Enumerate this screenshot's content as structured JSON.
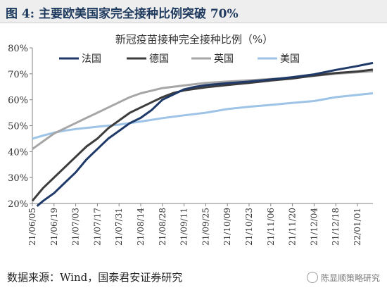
{
  "header": {
    "figure_title": "图 4:   主要欧美国家完全接种比例突破 70%"
  },
  "footer": {
    "source": "数据来源：Wind，国泰君安证券研究",
    "watermark": "陈显顺策略研究"
  },
  "colors": {
    "france": "#1f3a68",
    "germany": "#3c3c3c",
    "uk": "#a6a6a6",
    "usa": "#9dc3e6",
    "header_bg": "#eeeeee",
    "title": "#1f3a5f"
  },
  "chart_data": {
    "type": "line",
    "title": "新冠疫苗接种完全接种比例（%）",
    "xlabel": "",
    "ylabel": "",
    "ylim": [
      20,
      80
    ],
    "y_ticks": [
      20,
      30,
      40,
      50,
      60,
      70,
      80
    ],
    "y_tick_labels": [
      "20%",
      "30%",
      "40%",
      "50%",
      "60%",
      "70%",
      "80%"
    ],
    "x_tick_labels": [
      "21/06/05",
      "21/06/19",
      "21/07/03",
      "21/07/17",
      "21/07/31",
      "21/08/14",
      "21/08/28",
      "21/09/11",
      "21/09/25",
      "21/10/09",
      "21/10/23",
      "21/11/06",
      "21/11/20",
      "21/12/04",
      "21/12/18",
      "22/01/01"
    ],
    "x_range": [
      "2021-06-05",
      "2022-01-11"
    ],
    "grid": false,
    "legend": "top-left",
    "series": [
      {
        "name": "法国",
        "color": "#1f3a68",
        "points": [
          [
            "2021-06-08",
            19
          ],
          [
            "2021-06-12",
            21
          ],
          [
            "2021-06-19",
            24
          ],
          [
            "2021-06-26",
            28
          ],
          [
            "2021-07-03",
            32
          ],
          [
            "2021-07-10",
            37
          ],
          [
            "2021-07-17",
            41
          ],
          [
            "2021-07-24",
            45
          ],
          [
            "2021-07-31",
            48
          ],
          [
            "2021-08-07",
            51
          ],
          [
            "2021-08-14",
            53
          ],
          [
            "2021-08-21",
            56
          ],
          [
            "2021-08-28",
            60
          ],
          [
            "2021-09-04",
            62
          ],
          [
            "2021-09-11",
            64
          ],
          [
            "2021-09-18",
            65
          ],
          [
            "2021-09-25",
            65.6
          ],
          [
            "2021-10-09",
            66.4
          ],
          [
            "2021-10-23",
            67
          ],
          [
            "2021-11-06",
            67.8
          ],
          [
            "2021-11-20",
            68.7
          ],
          [
            "2021-12-04",
            69.8
          ],
          [
            "2021-12-18",
            71.5
          ],
          [
            "2022-01-01",
            73
          ],
          [
            "2022-01-11",
            74.2
          ]
        ]
      },
      {
        "name": "德国",
        "color": "#3c3c3c",
        "points": [
          [
            "2021-06-05",
            21
          ],
          [
            "2021-06-12",
            26
          ],
          [
            "2021-06-19",
            30
          ],
          [
            "2021-06-26",
            34
          ],
          [
            "2021-07-03",
            38
          ],
          [
            "2021-07-10",
            42
          ],
          [
            "2021-07-17",
            45
          ],
          [
            "2021-07-24",
            49
          ],
          [
            "2021-07-31",
            52
          ],
          [
            "2021-08-07",
            55
          ],
          [
            "2021-08-14",
            57
          ],
          [
            "2021-08-21",
            59
          ],
          [
            "2021-08-28",
            61
          ],
          [
            "2021-09-04",
            62.6
          ],
          [
            "2021-09-11",
            63.6
          ],
          [
            "2021-09-25",
            64.8
          ],
          [
            "2021-10-09",
            65.7
          ],
          [
            "2021-10-23",
            66.5
          ],
          [
            "2021-11-06",
            67.4
          ],
          [
            "2021-11-20",
            68.2
          ],
          [
            "2021-12-04",
            69.3
          ],
          [
            "2021-12-18",
            70.3
          ],
          [
            "2022-01-01",
            70.9
          ],
          [
            "2022-01-11",
            71.6
          ]
        ]
      },
      {
        "name": "英国",
        "color": "#a6a6a6",
        "points": [
          [
            "2021-06-05",
            41
          ],
          [
            "2021-06-12",
            44
          ],
          [
            "2021-06-19",
            47
          ],
          [
            "2021-06-26",
            49
          ],
          [
            "2021-07-03",
            51
          ],
          [
            "2021-07-10",
            53
          ],
          [
            "2021-07-17",
            55
          ],
          [
            "2021-07-24",
            57
          ],
          [
            "2021-07-31",
            59
          ],
          [
            "2021-08-07",
            61
          ],
          [
            "2021-08-14",
            62.5
          ],
          [
            "2021-08-21",
            63.5
          ],
          [
            "2021-08-28",
            64.5
          ],
          [
            "2021-09-11",
            65.5
          ],
          [
            "2021-09-25",
            66.5
          ],
          [
            "2021-10-09",
            67
          ],
          [
            "2021-10-23",
            67.5
          ],
          [
            "2021-11-06",
            68
          ],
          [
            "2021-11-20",
            68.5
          ],
          [
            "2021-12-04",
            69.2
          ],
          [
            "2021-12-18",
            70
          ],
          [
            "2022-01-01",
            70.6
          ],
          [
            "2022-01-11",
            71
          ]
        ]
      },
      {
        "name": "美国",
        "color": "#9dc3e6",
        "points": [
          [
            "2021-06-05",
            45
          ],
          [
            "2021-06-12",
            46.2
          ],
          [
            "2021-06-19",
            47.3
          ],
          [
            "2021-06-26",
            48.1
          ],
          [
            "2021-07-03",
            48.7
          ],
          [
            "2021-07-17",
            49.6
          ],
          [
            "2021-07-31",
            50.4
          ],
          [
            "2021-08-14",
            51.6
          ],
          [
            "2021-08-28",
            52.9
          ],
          [
            "2021-09-11",
            54
          ],
          [
            "2021-09-25",
            55
          ],
          [
            "2021-10-09",
            56.4
          ],
          [
            "2021-10-23",
            57.3
          ],
          [
            "2021-11-06",
            58
          ],
          [
            "2021-11-20",
            58.8
          ],
          [
            "2021-12-04",
            59.5
          ],
          [
            "2021-12-18",
            61
          ],
          [
            "2022-01-01",
            61.9
          ],
          [
            "2022-01-11",
            62.5
          ]
        ]
      }
    ]
  }
}
